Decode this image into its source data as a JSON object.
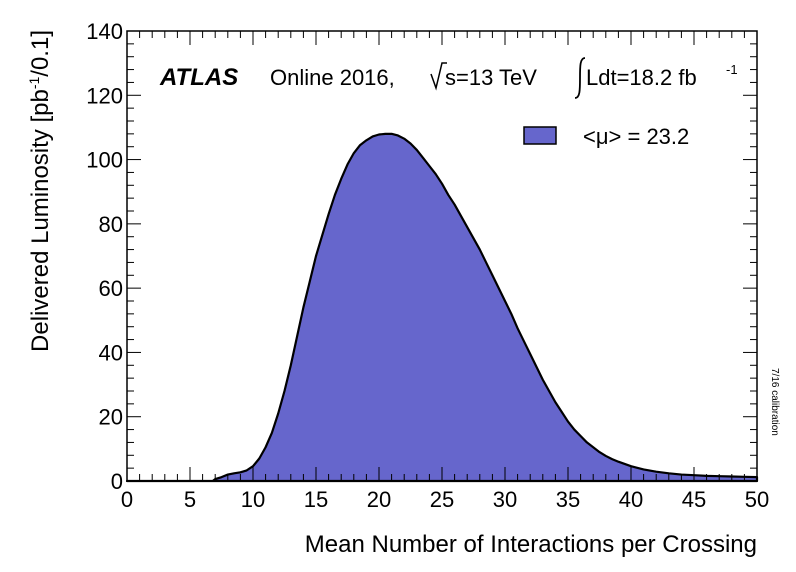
{
  "chart_data": {
    "type": "area",
    "experiment": "ATLAS",
    "run_label": "Online 2016,",
    "energy_label": "s=13 TeV",
    "lumi_label": "Ldt=18.2 fb",
    "lumi_exponent": "-1",
    "xlabel": "Mean Number of Interactions per Crossing",
    "ylabel_parts": [
      "Delivered Luminosity [pb",
      "-1",
      "/0.1]"
    ],
    "side_note": "7/16 calibration",
    "legend": [
      {
        "label": "<μ> = 23.2",
        "color": "#6666cc"
      }
    ],
    "xlim": [
      0,
      50
    ],
    "ylim": [
      0,
      140
    ],
    "x_ticks": [
      "0",
      "5",
      "10",
      "15",
      "20",
      "25",
      "30",
      "35",
      "40",
      "45",
      "50"
    ],
    "y_ticks": [
      "0",
      "20",
      "40",
      "60",
      "80",
      "100",
      "120",
      "140"
    ],
    "fill_color": "#6666cc",
    "series": [
      {
        "name": "<μ> = 23.2",
        "x": [
          0,
          6.8,
          7,
          7.5,
          8,
          8.5,
          9,
          9.5,
          10,
          10.5,
          11,
          11.5,
          12,
          12.5,
          13,
          13.5,
          14,
          14.5,
          15,
          15.5,
          16,
          16.5,
          17,
          17.5,
          18,
          18.5,
          19,
          19.5,
          20,
          20.5,
          21,
          21.5,
          22,
          22.5,
          23,
          23.5,
          24,
          24.5,
          25,
          25.5,
          26,
          26.5,
          27,
          27.5,
          28,
          28.5,
          29,
          29.5,
          30,
          30.5,
          31,
          31.5,
          32,
          32.5,
          33,
          33.5,
          34,
          34.5,
          35,
          35.5,
          36,
          36.5,
          37,
          37.5,
          38,
          38.5,
          39,
          39.5,
          40,
          41,
          42,
          43,
          44,
          45,
          46,
          47,
          48,
          49,
          50
        ],
        "y": [
          0,
          0,
          0.6,
          1.2,
          2.0,
          2.4,
          2.7,
          3.3,
          4.6,
          7.0,
          10.5,
          15.0,
          21.0,
          28.0,
          36.0,
          45.0,
          54.0,
          62.0,
          70.0,
          76.5,
          83.0,
          89.0,
          94.0,
          98.5,
          102.0,
          104.5,
          106.0,
          107.2,
          107.8,
          108.0,
          108.0,
          107.5,
          106.5,
          105.0,
          103.0,
          100.5,
          98.0,
          95.5,
          92.5,
          89.0,
          86.0,
          82.5,
          79.0,
          75.5,
          72.0,
          68.0,
          64.0,
          60.0,
          56.0,
          52.0,
          47.5,
          43.5,
          39.5,
          35.5,
          31.5,
          28.0,
          24.5,
          21.5,
          18.5,
          16.0,
          14.0,
          12.0,
          10.5,
          9.0,
          7.8,
          6.8,
          6.0,
          5.3,
          4.6,
          3.6,
          2.9,
          2.4,
          2.0,
          1.8,
          1.6,
          1.5,
          1.4,
          1.3,
          1.2
        ]
      }
    ]
  }
}
